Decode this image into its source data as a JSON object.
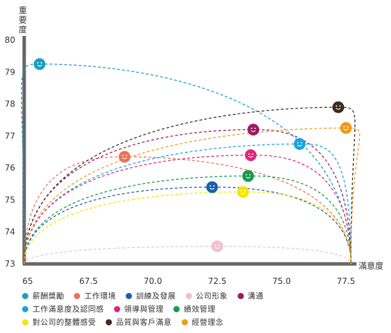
{
  "chart_data": {
    "type": "scatter",
    "xlabel": "滿意度",
    "ylabel": "重要度",
    "xlim": [
      65,
      77.8
    ],
    "ylim": [
      73,
      80
    ],
    "x_ticks": [
      "65",
      "67.5",
      "70.0",
      "72.5",
      "75.0",
      "77.5"
    ],
    "x_tick_values": [
      65,
      67.5,
      70,
      72.5,
      75,
      77.5
    ],
    "y_ticks": [
      "73",
      "74",
      "75",
      "76",
      "77",
      "78",
      "79",
      "80"
    ],
    "y_tick_values": [
      73,
      74,
      75,
      76,
      77,
      78,
      79,
      80
    ],
    "grid": false,
    "legend_position": "bottom",
    "series": [
      {
        "name": "薪酬獎勵",
        "color": "#1a9fc3",
        "x": 65.6,
        "y": 79.25
      },
      {
        "name": "工作環境",
        "color": "#e8735a",
        "x": 68.9,
        "y": 76.35
      },
      {
        "name": "訓練及發展",
        "color": "#1b5fa8",
        "x": 72.3,
        "y": 75.4
      },
      {
        "name": "公司形象",
        "color": "#f2bfd0",
        "x": 72.5,
        "y": 73.55
      },
      {
        "name": "溝通",
        "color": "#9e1a63",
        "x": 73.9,
        "y": 77.2
      },
      {
        "name": "工作滿意度及認同感",
        "color": "#1aa3e0",
        "x": 75.7,
        "y": 76.75
      },
      {
        "name": "領導與管理",
        "color": "#e0267a",
        "x": 73.8,
        "y": 76.4
      },
      {
        "name": "績效管理",
        "color": "#169a4e",
        "x": 73.7,
        "y": 75.75
      },
      {
        "name": "對公司的整體感受",
        "color": "#f2e600",
        "x": 73.5,
        "y": 75.25
      },
      {
        "name": "品質與客戶滿意",
        "color": "#3d2b1f",
        "x": 77.2,
        "y": 77.9
      },
      {
        "name": "經營理念",
        "color": "#f09a1a",
        "x": 77.5,
        "y": 77.25
      }
    ]
  },
  "legend_rows": [
    [
      0,
      1,
      2,
      3,
      4
    ],
    [
      5,
      6,
      7
    ],
    [
      8,
      9,
      10
    ]
  ],
  "colors": {
    "axis": "#666666",
    "text": "#333333"
  }
}
